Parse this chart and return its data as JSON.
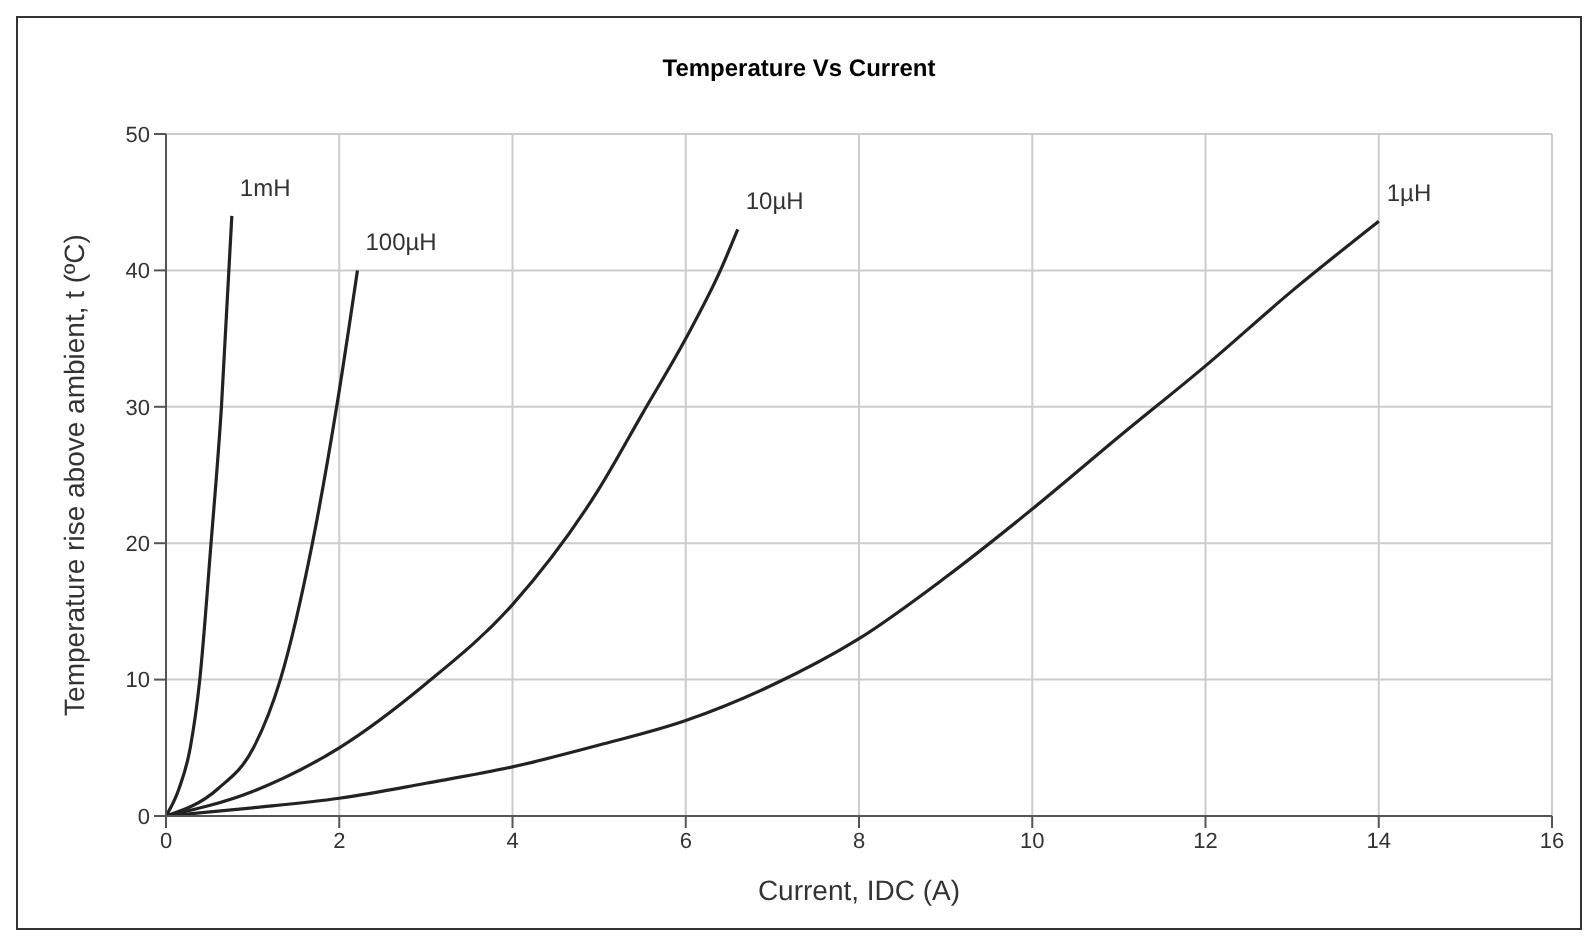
{
  "chart_data": {
    "type": "line",
    "title": "Temperature Vs Current",
    "xlabel": "Current, IDC (A)",
    "ylabel": "Temperature rise above ambient, t (ºC)",
    "xlim": [
      0,
      16
    ],
    "xticks": [
      0,
      2,
      4,
      6,
      8,
      10,
      12,
      14,
      16
    ],
    "ylim": [
      0,
      50
    ],
    "yticks": [
      0,
      10,
      20,
      30,
      40,
      50
    ],
    "grid": true,
    "marker": "none",
    "line_style": "solid",
    "series": [
      {
        "name": "1mH",
        "color": "#222222",
        "x": [
          0,
          0.15,
          0.28,
          0.39,
          0.52,
          0.64,
          0.76
        ],
        "values": [
          0,
          2,
          5,
          10,
          20,
          30,
          44
        ]
      },
      {
        "name": "100µH",
        "color": "#222222",
        "x": [
          0,
          0.6,
          1.01,
          1.32,
          1.69,
          1.97,
          2.21
        ],
        "values": [
          0,
          2,
          5,
          10,
          20,
          30,
          40
        ]
      },
      {
        "name": "10µH",
        "color": "#222222",
        "x": [
          0,
          1,
          2,
          3,
          4,
          5,
          5.5,
          6,
          6.4,
          6.6
        ],
        "values": [
          0,
          1.8,
          5,
          9.7,
          15.5,
          24,
          29.5,
          35,
          40,
          43
        ]
      },
      {
        "name": "1µH",
        "color": "#222222",
        "x": [
          0,
          1,
          2,
          3,
          4,
          5,
          6,
          7,
          8,
          9,
          10,
          11,
          12,
          13,
          14
        ],
        "values": [
          0,
          0.6,
          1.3,
          2.4,
          3.6,
          5.2,
          7,
          9.6,
          13,
          17.5,
          22.5,
          27.8,
          33,
          38.5,
          43.6
        ]
      }
    ]
  }
}
